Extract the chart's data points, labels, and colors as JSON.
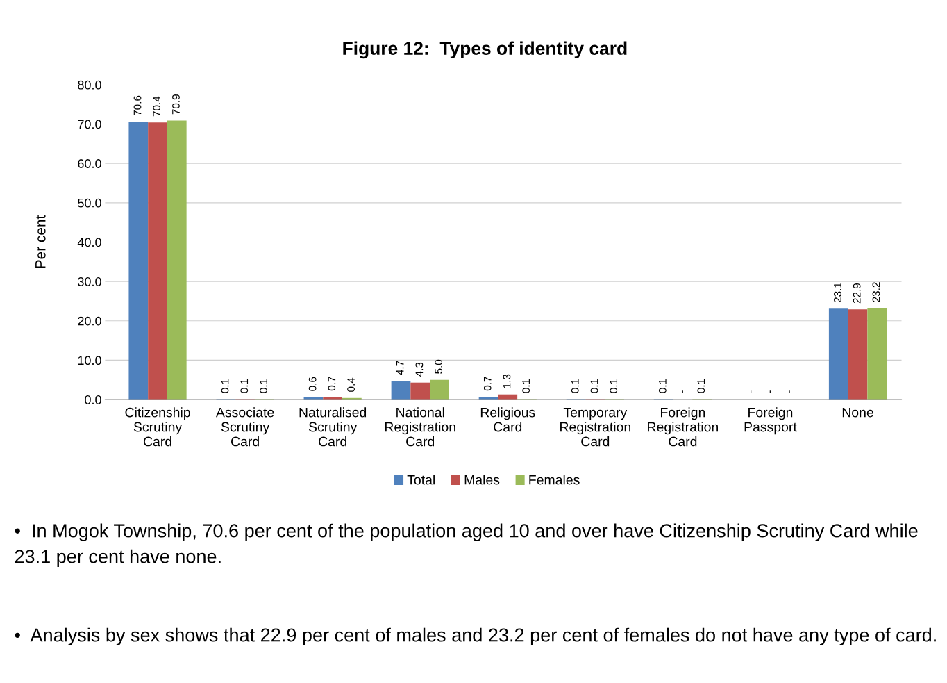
{
  "chart_data": {
    "type": "bar",
    "title": "Figure 12:  Types of identity card",
    "ylabel": "Per cent",
    "categories": [
      "Citizenship\nScrutiny\nCard",
      "Associate\nScrutiny\nCard",
      "Naturalised\nScrutiny\nCard",
      "National\nRegistration\nCard",
      "Religious\nCard",
      "Temporary\nRegistration\nCard",
      "Foreign\nRegistration\nCard",
      "Foreign\nPassport",
      "None"
    ],
    "series": [
      {
        "name": "Total",
        "color": "#4f81bd",
        "values": [
          70.6,
          0.1,
          0.6,
          4.7,
          0.7,
          0.1,
          0.1,
          null,
          23.1
        ],
        "value_labels": [
          "70.6",
          "0.1",
          "0.6",
          "4.7",
          "0.7",
          "0.1",
          "0.1",
          "-",
          "23.1"
        ]
      },
      {
        "name": "Males",
        "color": "#c0504d",
        "values": [
          70.4,
          0.1,
          0.7,
          4.3,
          1.3,
          0.1,
          null,
          null,
          22.9
        ],
        "value_labels": [
          "70.4",
          "0.1",
          "0.7",
          "4.3",
          "1.3",
          "0.1",
          "-",
          "-",
          "22.9"
        ]
      },
      {
        "name": "Females",
        "color": "#9bbb59",
        "values": [
          70.9,
          0.1,
          0.4,
          5.0,
          0.1,
          0.1,
          0.1,
          null,
          23.2
        ],
        "value_labels": [
          "70.9",
          "0.1",
          "0.4",
          "5.0",
          "0.1",
          "0.1",
          "0.1",
          "-",
          "23.2"
        ]
      }
    ],
    "ylim": [
      0,
      80
    ],
    "yticks": [
      {
        "value": 0,
        "label": "0.0"
      },
      {
        "value": 10,
        "label": "10.0"
      },
      {
        "value": 20,
        "label": "20.0"
      },
      {
        "value": 30,
        "label": "30.0"
      },
      {
        "value": 40,
        "label": "40.0"
      },
      {
        "value": 50,
        "label": "50.0"
      },
      {
        "value": 60,
        "label": "60.0"
      },
      {
        "value": 70,
        "label": "70.0"
      },
      {
        "value": 80,
        "label": "80.0"
      }
    ],
    "grid": "y",
    "legend": "bottom",
    "annotations": [
      "•  In Mogok Township, 70.6 per cent of the population aged 10 and over have Citizenship Scrutiny Card while 23.1 per cent have none.",
      "•  Analysis by sex shows that 22.9 per cent of males and 23.2 per cent of females do not have any type of card."
    ]
  }
}
